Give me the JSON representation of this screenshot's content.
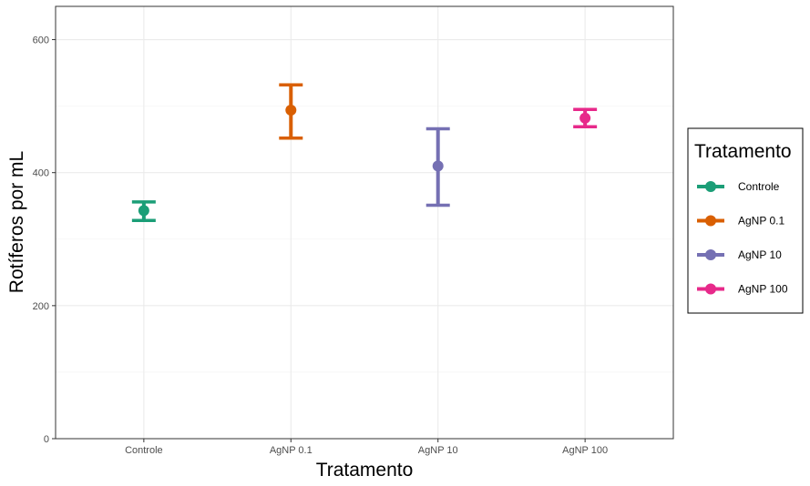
{
  "chart_data": {
    "type": "scatter",
    "title": "",
    "xlabel": "Tratamento",
    "ylabel": "Rotíferos por mL",
    "categories": [
      "Controle",
      "AgNP 0.1",
      "AgNP 10",
      "AgNP 100"
    ],
    "ylim": [
      0,
      650
    ],
    "yticks": [
      0,
      200,
      400,
      600
    ],
    "grid": true,
    "error_bars": true,
    "series": [
      {
        "category": "Controle",
        "mean": 343,
        "lower": 328,
        "upper": 356,
        "color": "#1b9e77"
      },
      {
        "category": "AgNP 0.1",
        "mean": 494,
        "lower": 452,
        "upper": 532,
        "color": "#d95f02"
      },
      {
        "category": "AgNP 10",
        "mean": 410,
        "lower": 351,
        "upper": 466,
        "color": "#7570b3"
      },
      {
        "category": "AgNP 100",
        "mean": 482,
        "lower": 469,
        "upper": 495,
        "color": "#e7298a"
      }
    ],
    "legend": {
      "title": "Tratamento",
      "placement": "right",
      "entries": [
        "Controle",
        "AgNP 0.1",
        "AgNP 10",
        "AgNP 100"
      ]
    }
  }
}
